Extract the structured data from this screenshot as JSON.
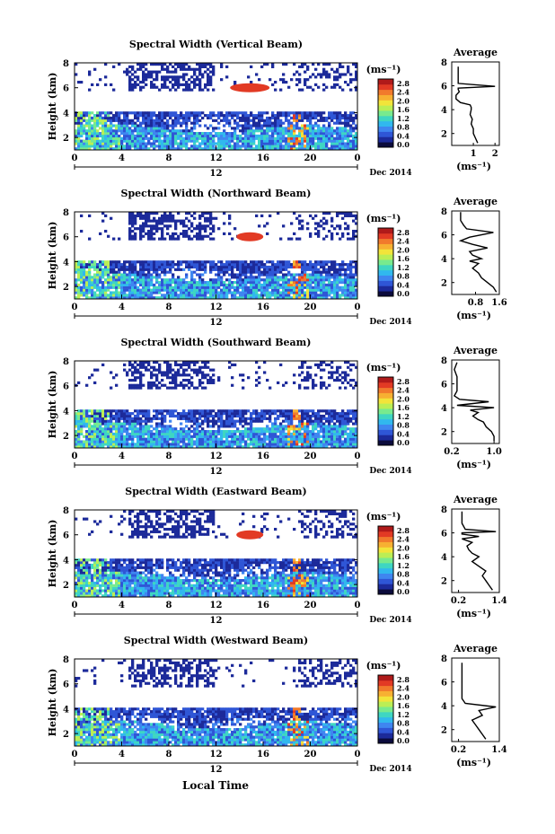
{
  "figure": {
    "xlabel_bottom": "Local Time",
    "date_label": "Dec 2014",
    "day_label": "12",
    "ylabel": "Height (km)",
    "unit_label": "(ms⁻¹)",
    "avg_title": "Average",
    "avg_xlabel": "(ms⁻¹)",
    "colorbar_ticks": [
      "2.8",
      "2.4",
      "2.0",
      "1.6",
      "1.2",
      "0.8",
      "0.4",
      "0.0"
    ],
    "colormap": [
      "#0b0b3c",
      "#1c2a9a",
      "#2f56d6",
      "#3f86f0",
      "#31b8ee",
      "#3fd6c2",
      "#78ea8e",
      "#bbee55",
      "#f2e43a",
      "#f7b032",
      "#f17a2c",
      "#e23a24",
      "#b01a1a"
    ]
  },
  "chart_data": [
    {
      "type": "heatmap",
      "title": "Spectral Width (Vertical Beam)",
      "x_ticks": [
        "0",
        "4",
        "8",
        "12",
        "16",
        "20",
        "0"
      ],
      "y_ticks": [
        "2",
        "4",
        "6",
        "8"
      ],
      "xlim": [
        0,
        24
      ],
      "ylim": [
        1,
        8
      ],
      "avg": {
        "type": "line",
        "xlim": [
          0,
          2.2
        ],
        "x_ticks": [
          "1",
          "2"
        ],
        "x_tick_values": [
          1,
          2
        ],
        "ylim": [
          1,
          8
        ],
        "y_ticks": [
          "2",
          "4",
          "6",
          "8"
        ],
        "x": [
          1.2,
          1.1,
          1.0,
          1.0,
          0.9,
          0.95,
          0.85,
          0.9,
          0.9,
          0.85,
          0.4,
          0.2,
          0.2,
          0.35,
          0.3,
          0.3,
          2.0,
          0.3,
          0.3,
          0.3
        ],
        "y": [
          1.2,
          1.6,
          2.0,
          2.4,
          2.8,
          3.2,
          3.6,
          4.0,
          4.2,
          4.4,
          4.6,
          4.9,
          5.2,
          5.5,
          5.7,
          5.8,
          5.95,
          6.2,
          6.8,
          7.6
        ]
      }
    },
    {
      "type": "heatmap",
      "title": "Spectral Width (Northward Beam)",
      "x_ticks": [
        "0",
        "4",
        "8",
        "12",
        "16",
        "20",
        "0"
      ],
      "y_ticks": [
        "2",
        "4",
        "6",
        "8"
      ],
      "xlim": [
        0,
        24
      ],
      "ylim": [
        1,
        8
      ],
      "avg": {
        "type": "line",
        "xlim": [
          0,
          1.6
        ],
        "x_ticks": [
          "0.8",
          "1.6"
        ],
        "x_tick_values": [
          0.8,
          1.6
        ],
        "ylim": [
          1,
          8
        ],
        "y_ticks": [
          "2",
          "4",
          "6",
          "8"
        ],
        "x": [
          1.5,
          1.4,
          1.2,
          1.0,
          0.9,
          0.7,
          0.9,
          0.6,
          1.0,
          0.7,
          0.6,
          1.2,
          0.7,
          0.3,
          0.6,
          1.4,
          0.5,
          0.4,
          0.3,
          0.3,
          0.3
        ],
        "y": [
          1.2,
          1.6,
          2.0,
          2.4,
          2.8,
          3.2,
          3.6,
          3.8,
          4.0,
          4.3,
          4.6,
          4.9,
          5.2,
          5.5,
          5.8,
          6.2,
          6.5,
          6.8,
          7.2,
          7.6,
          7.9
        ]
      }
    },
    {
      "type": "heatmap",
      "title": "Spectral Width (Southward Beam)",
      "x_ticks": [
        "0",
        "4",
        "8",
        "12",
        "16",
        "20",
        "0"
      ],
      "y_ticks": [
        "2",
        "4",
        "6",
        "8"
      ],
      "xlim": [
        0,
        24
      ],
      "ylim": [
        1,
        8
      ],
      "avg": {
        "type": "line",
        "xlim": [
          0.2,
          1.1
        ],
        "x_ticks": [
          "0.2",
          "1.0"
        ],
        "x_tick_values": [
          0.2,
          1.0
        ],
        "ylim": [
          1,
          8
        ],
        "y_ticks": [
          "2",
          "4",
          "6",
          "8"
        ],
        "x": [
          1.0,
          1.0,
          0.95,
          0.85,
          0.8,
          0.7,
          0.6,
          0.7,
          0.55,
          1.0,
          0.3,
          0.9,
          0.35,
          0.25,
          0.3,
          0.3,
          0.3,
          0.25,
          0.3
        ],
        "y": [
          1.2,
          1.6,
          2.0,
          2.4,
          2.8,
          3.0,
          3.3,
          3.6,
          3.8,
          4.0,
          4.2,
          4.5,
          4.7,
          5.0,
          5.4,
          6.0,
          6.6,
          7.2,
          7.8
        ]
      }
    },
    {
      "type": "heatmap",
      "title": "Spectral Width (Eastward Beam)",
      "x_ticks": [
        "0",
        "4",
        "8",
        "12",
        "16",
        "20",
        "0"
      ],
      "y_ticks": [
        "2",
        "4",
        "6",
        "8"
      ],
      "xlim": [
        0,
        24
      ],
      "ylim": [
        1,
        8
      ],
      "avg": {
        "type": "line",
        "xlim": [
          0,
          1.4
        ],
        "x_ticks": [
          "0.2",
          "1.4"
        ],
        "x_tick_values": [
          0.2,
          1.4
        ],
        "ylim": [
          1,
          8
        ],
        "y_ticks": [
          "2",
          "4",
          "6",
          "8"
        ],
        "x": [
          1.2,
          1.1,
          1.0,
          0.9,
          1.0,
          0.8,
          0.6,
          0.8,
          0.6,
          0.5,
          0.45,
          0.6,
          0.3,
          0.8,
          0.3,
          0.3,
          1.3,
          0.4,
          0.3,
          0.3,
          0.3
        ],
        "y": [
          1.2,
          1.6,
          2.0,
          2.4,
          2.8,
          3.2,
          3.6,
          4.0,
          4.3,
          4.6,
          4.9,
          5.2,
          5.5,
          5.7,
          5.9,
          6.0,
          6.1,
          6.3,
          6.8,
          7.2,
          7.8
        ]
      }
    },
    {
      "type": "heatmap",
      "title": "Spectral Width (Westward Beam)",
      "x_ticks": [
        "0",
        "4",
        "8",
        "12",
        "16",
        "20",
        "0"
      ],
      "y_ticks": [
        "2",
        "4",
        "6",
        "8"
      ],
      "xlim": [
        0,
        24
      ],
      "ylim": [
        1,
        8
      ],
      "avg": {
        "type": "line",
        "xlim": [
          0,
          1.4
        ],
        "x_ticks": [
          "0.2",
          "1.4"
        ],
        "x_tick_values": [
          0.2,
          1.4
        ],
        "ylim": [
          1,
          8
        ],
        "y_ticks": [
          "2",
          "4",
          "6",
          "8"
        ],
        "x": [
          1.0,
          0.9,
          0.8,
          0.7,
          0.6,
          0.9,
          0.8,
          1.3,
          0.4,
          0.3,
          0.3,
          0.3,
          0.3,
          0.3
        ],
        "y": [
          1.2,
          1.6,
          2.0,
          2.4,
          2.8,
          3.2,
          3.6,
          3.9,
          4.2,
          4.6,
          5.2,
          6.0,
          6.8,
          7.6
        ]
      }
    }
  ]
}
